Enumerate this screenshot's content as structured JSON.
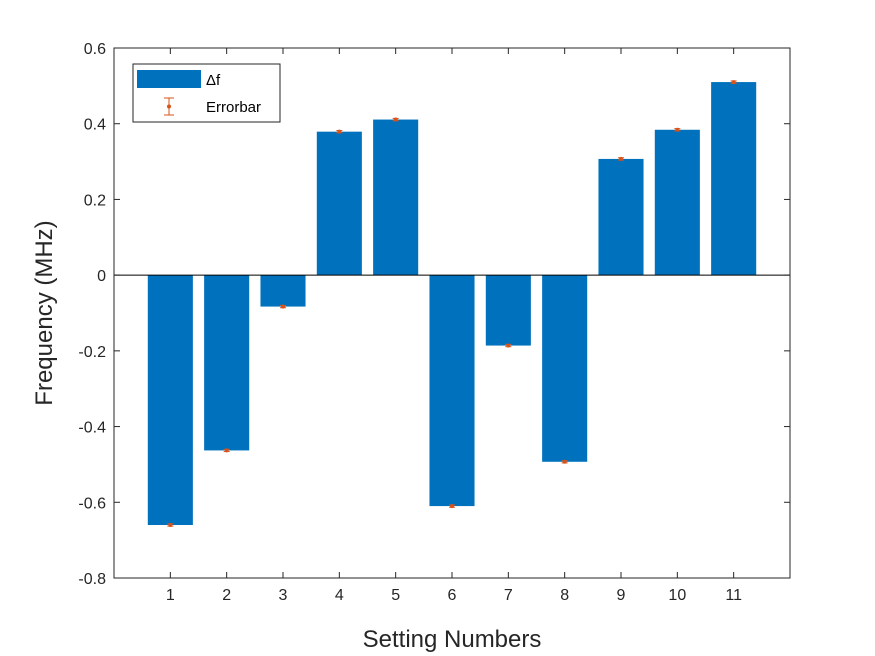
{
  "chart_data": {
    "type": "bar",
    "title": "",
    "xlabel": "Setting Numbers",
    "ylabel": "Frequency (MHz)",
    "categories": [
      "1",
      "2",
      "3",
      "4",
      "5",
      "6",
      "7",
      "8",
      "9",
      "10",
      "11"
    ],
    "series": [
      {
        "name": "Δf",
        "color": "#0072BD",
        "values": [
          -0.66,
          -0.463,
          -0.083,
          0.379,
          0.411,
          -0.61,
          -0.186,
          -0.493,
          0.307,
          0.384,
          0.51
        ]
      }
    ],
    "errorbar": {
      "name": "Errorbar",
      "color": "#D95319",
      "errors": [
        0.003,
        0.003,
        0.003,
        0.003,
        0.003,
        0.003,
        0.003,
        0.003,
        0.003,
        0.003,
        0.003
      ]
    },
    "ylim": [
      -0.8,
      0.6
    ],
    "yticks": [
      "-0.8",
      "-0.6",
      "-0.4",
      "-0.2",
      "0",
      "0.2",
      "0.4",
      "0.6"
    ],
    "xlim": [
      0,
      12
    ],
    "legend_position": "top-left",
    "grid": false
  }
}
